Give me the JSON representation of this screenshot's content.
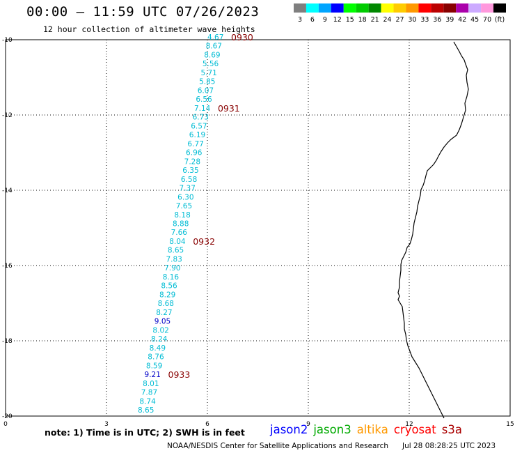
{
  "title": "00:00 – 11:59 UTC 07/26/2023",
  "subtitle": "12 hour collection of altimeter wave heights",
  "scale": {
    "colors": [
      "#7f7f7f",
      "#00ffff",
      "#00a5ff",
      "#0000ff",
      "#00ff00",
      "#00cc00",
      "#008800",
      "#ffff00",
      "#ffcc00",
      "#ff9900",
      "#ff0000",
      "#bb0000",
      "#880000",
      "#aa00aa",
      "#ccaaff",
      "#ff99dd",
      "#000000"
    ],
    "labels": [
      "3",
      "6",
      "9",
      "12",
      "15",
      "18",
      "21",
      "24",
      "27",
      "30",
      "33",
      "36",
      "39",
      "42",
      "45",
      "70",
      "(ft)"
    ]
  },
  "axes": {
    "x_ticks": [
      "0",
      "3",
      "6",
      "9",
      "12",
      "15"
    ],
    "y_ticks": [
      "-10",
      "-12",
      "-14",
      "-16",
      "-18",
      "-20"
    ]
  },
  "track_points": [
    {
      "v": "4.67",
      "color": "#00bcd4"
    },
    {
      "v": "8.67",
      "color": "#00bcd4"
    },
    {
      "v": "8.69",
      "color": "#00bcd4"
    },
    {
      "v": "5.56",
      "color": "#00bcd4"
    },
    {
      "v": "5.71",
      "color": "#00bcd4"
    },
    {
      "v": "5.85",
      "color": "#00bcd4"
    },
    {
      "v": "6.07",
      "color": "#00bcd4"
    },
    {
      "v": "6.56",
      "color": "#00bcd4"
    },
    {
      "v": "7.14",
      "color": "#00bcd4"
    },
    {
      "v": "6.73",
      "color": "#00bcd4"
    },
    {
      "v": "6.57",
      "color": "#00bcd4"
    },
    {
      "v": "6.19",
      "color": "#00bcd4"
    },
    {
      "v": "6.77",
      "color": "#00bcd4"
    },
    {
      "v": "6.96",
      "color": "#00bcd4"
    },
    {
      "v": "7.28",
      "color": "#00bcd4"
    },
    {
      "v": "6.35",
      "color": "#00bcd4"
    },
    {
      "v": "6.58",
      "color": "#00bcd4"
    },
    {
      "v": "7.37",
      "color": "#00bcd4"
    },
    {
      "v": "6.30",
      "color": "#00bcd4"
    },
    {
      "v": "7.65",
      "color": "#00bcd4"
    },
    {
      "v": "8.18",
      "color": "#00bcd4"
    },
    {
      "v": "8.88",
      "color": "#00bcd4"
    },
    {
      "v": "7.66",
      "color": "#00bcd4"
    },
    {
      "v": "8.04",
      "color": "#00bcd4"
    },
    {
      "v": "8.65",
      "color": "#00bcd4"
    },
    {
      "v": "7.83",
      "color": "#00bcd4"
    },
    {
      "v": "7.90",
      "color": "#00bcd4"
    },
    {
      "v": "8.16",
      "color": "#00bcd4"
    },
    {
      "v": "8.56",
      "color": "#00bcd4"
    },
    {
      "v": "8.29",
      "color": "#00bcd4"
    },
    {
      "v": "8.68",
      "color": "#00bcd4"
    },
    {
      "v": "8.27",
      "color": "#00bcd4"
    },
    {
      "v": "9.05",
      "color": "#0000c8"
    },
    {
      "v": "8.02",
      "color": "#00bcd4"
    },
    {
      "v": "8.24",
      "color": "#00bcd4"
    },
    {
      "v": "8.49",
      "color": "#00bcd4"
    },
    {
      "v": "8.76",
      "color": "#00bcd4"
    },
    {
      "v": "8.59",
      "color": "#00bcd4"
    },
    {
      "v": "9.21",
      "color": "#0000c8"
    },
    {
      "v": "8.01",
      "color": "#00bcd4"
    },
    {
      "v": "7.87",
      "color": "#00bcd4"
    },
    {
      "v": "8.74",
      "color": "#00bcd4"
    },
    {
      "v": "8.65",
      "color": "#00bcd4"
    }
  ],
  "time_labels": [
    "0930",
    "0931",
    "0932",
    "0933"
  ],
  "note": "note: 1) Time is in UTC; 2) SWH is in feet",
  "missions": [
    {
      "name": "jason2",
      "color": "#0000ff"
    },
    {
      "name": "jason3",
      "color": "#00aa00"
    },
    {
      "name": "altika",
      "color": "#ff9900"
    },
    {
      "name": "cryosat",
      "color": "#ff0000"
    },
    {
      "name": "s3a",
      "color": "#aa0000"
    }
  ],
  "credit": "NOAA/NESDIS Center for Satellite Applications and Research",
  "credit_time": "Jul 28 08:28:25 UTC 2023"
}
